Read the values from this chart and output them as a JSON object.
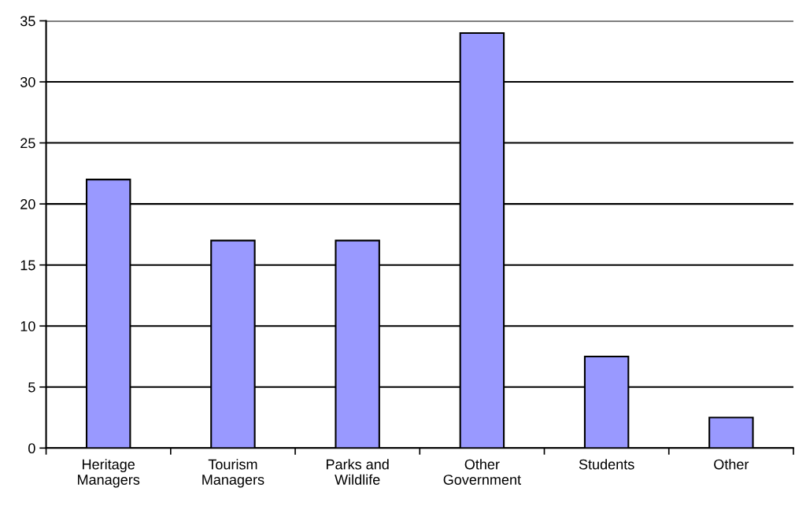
{
  "chart_data": {
    "type": "bar",
    "categories": [
      "Heritage Managers",
      "Tourism Managers",
      "Parks and Wildlife",
      "Other Government",
      "Students",
      "Other"
    ],
    "values": [
      22,
      17,
      17,
      34,
      7.5,
      2.5
    ],
    "color": "#9999ff",
    "ylim": [
      0,
      35
    ],
    "yticks": [
      0,
      5,
      10,
      15,
      20,
      25,
      30,
      35
    ],
    "grid": "y"
  }
}
